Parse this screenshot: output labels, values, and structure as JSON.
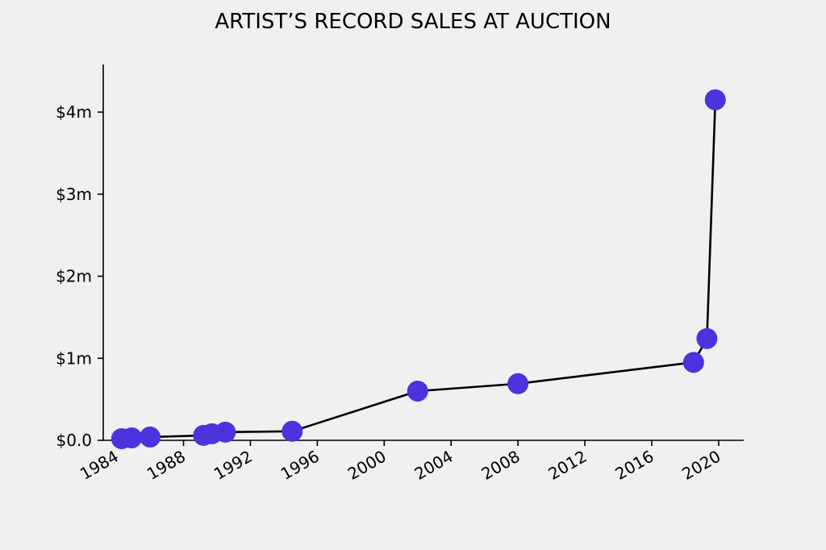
{
  "chart_data": {
    "type": "line",
    "title": "ARTIST’S RECORD SALES AT AUCTION",
    "xlabel": "",
    "ylabel": "",
    "x_ticks": [
      1984,
      1988,
      1992,
      1996,
      2000,
      2004,
      2008,
      2012,
      2016,
      2020
    ],
    "x_tick_labels": [
      "1984",
      "1988",
      "1992",
      "1996",
      "2000",
      "2004",
      "2008",
      "2012",
      "2016",
      "2020"
    ],
    "y_ticks": [
      0,
      1,
      2,
      3,
      4
    ],
    "y_tick_labels": [
      "$0.0",
      "$1m",
      "$2m",
      "$3m",
      "$4m"
    ],
    "xlim": [
      1983.2,
      2021.5
    ],
    "ylim": [
      0,
      4.58
    ],
    "grid": false,
    "legend": "none",
    "series": [
      {
        "x": [
          1984.3,
          1984.9,
          1986.0,
          1989.2,
          1989.7,
          1990.5,
          1994.5,
          2002.0,
          2008.0,
          2018.5,
          2019.3,
          2019.8
        ],
        "y": [
          0.02,
          0.03,
          0.04,
          0.06,
          0.08,
          0.1,
          0.11,
          0.6,
          0.69,
          0.95,
          1.24,
          4.15
        ]
      }
    ],
    "colors": {
      "marker": "#4b33dd",
      "line": "#000000",
      "background": "#f0f0f0"
    }
  }
}
